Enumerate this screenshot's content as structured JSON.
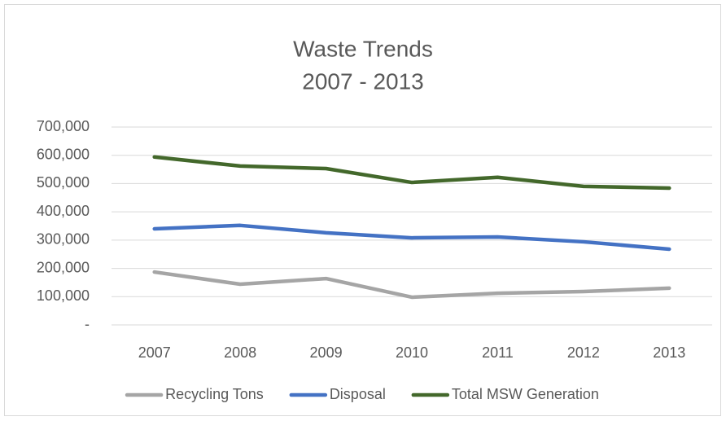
{
  "chart_data": {
    "type": "line",
    "title": "Waste Trends",
    "subtitle": "2007 - 2013",
    "categories": [
      "2007",
      "2008",
      "2009",
      "2010",
      "2011",
      "2012",
      "2013"
    ],
    "series": [
      {
        "name": "Recycling Tons",
        "color": "#a5a5a5",
        "values": [
          187000,
          144000,
          164000,
          98000,
          112000,
          118000,
          130000
        ]
      },
      {
        "name": "Disposal",
        "color": "#4472c4",
        "values": [
          340000,
          352000,
          326000,
          308000,
          311000,
          294000,
          268000
        ]
      },
      {
        "name": "Total MSW Generation",
        "color": "#43682b",
        "values": [
          594000,
          562000,
          553000,
          504000,
          522000,
          490000,
          484000
        ]
      }
    ],
    "ylim": [
      0,
      700000
    ],
    "yticks": [
      {
        "value": 0,
        "label": "-"
      },
      {
        "value": 100000,
        "label": "100,000"
      },
      {
        "value": 200000,
        "label": "200,000"
      },
      {
        "value": 300000,
        "label": "300,000"
      },
      {
        "value": 400000,
        "label": "400,000"
      },
      {
        "value": 500000,
        "label": "500,000"
      },
      {
        "value": 600000,
        "label": "600,000"
      },
      {
        "value": 700000,
        "label": "700,000"
      }
    ],
    "grid": true,
    "legend": "bottom"
  }
}
